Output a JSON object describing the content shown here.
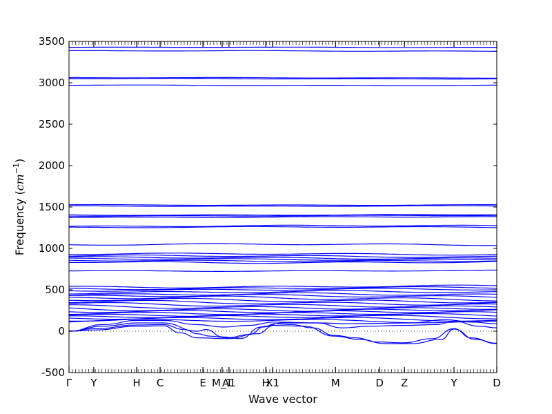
{
  "chart_data": {
    "type": "line",
    "title": "",
    "xlabel": "Wave vector",
    "ylabel_text": "Frequency (",
    "ylabel_math": "cm",
    "ylabel_exp": "−1",
    "ylabel_close": ")",
    "ylim": [
      -500,
      3500
    ],
    "yticks": [
      -500,
      0,
      500,
      1000,
      1500,
      2000,
      2500,
      3000,
      3500
    ],
    "xlim": [
      0,
      1
    ],
    "xticks": [
      {
        "label": "Γ",
        "x": 0.0
      },
      {
        "label": "Y",
        "x": 0.058
      },
      {
        "label": "H",
        "x": 0.158
      },
      {
        "label": "C",
        "x": 0.213
      },
      {
        "label": "E",
        "x": 0.313
      },
      {
        "label": "M_1",
        "x": 0.358
      },
      {
        "label": "A1",
        "x": 0.374
      },
      {
        "label": "H",
        "x": 0.46
      },
      {
        "label": "X1",
        "x": 0.476
      },
      {
        "label": "M",
        "x": 0.623
      },
      {
        "label": "D",
        "x": 0.726
      },
      {
        "label": "Z",
        "x": 0.784
      },
      {
        "label": "Y",
        "x": 0.9
      },
      {
        "label": "D",
        "x": 1.0
      }
    ],
    "zero_line": true,
    "series_color": "#0000ff",
    "flat_bands": [
      {
        "y": 3428,
        "amp": 3
      },
      {
        "y": 3384,
        "amp": 6
      },
      {
        "y": 3060,
        "amp": 4
      },
      {
        "y": 3050,
        "amp": 5
      },
      {
        "y": 2970,
        "amp": 5
      },
      {
        "y": 1525,
        "amp": 6
      },
      {
        "y": 1512,
        "amp": 5
      },
      {
        "y": 1405,
        "amp": 7
      },
      {
        "y": 1395,
        "amp": 7
      },
      {
        "y": 1378,
        "amp": 7
      },
      {
        "y": 1270,
        "amp": 12
      },
      {
        "y": 1255,
        "amp": 10
      },
      {
        "y": 1045,
        "amp": 14
      },
      {
        "y": 930,
        "amp": 14
      },
      {
        "y": 905,
        "amp": 16
      },
      {
        "y": 885,
        "amp": 16
      },
      {
        "y": 870,
        "amp": 14
      },
      {
        "y": 852,
        "amp": 14
      },
      {
        "y": 835,
        "amp": 16
      },
      {
        "y": 730,
        "amp": 8
      },
      {
        "y": 540,
        "amp": 18
      },
      {
        "y": 520,
        "amp": 18
      },
      {
        "y": 500,
        "amp": 18
      },
      {
        "y": 470,
        "amp": 22
      },
      {
        "y": 440,
        "amp": 25
      },
      {
        "y": 420,
        "amp": 25
      },
      {
        "y": 395,
        "amp": 30
      },
      {
        "y": 370,
        "amp": 28
      },
      {
        "y": 345,
        "amp": 30
      },
      {
        "y": 320,
        "amp": 30
      },
      {
        "y": 295,
        "amp": 30
      },
      {
        "y": 270,
        "amp": 32
      },
      {
        "y": 250,
        "amp": 30
      },
      {
        "y": 228,
        "amp": 32
      },
      {
        "y": 205,
        "amp": 32
      },
      {
        "y": 185,
        "amp": 30
      },
      {
        "y": 165,
        "amp": 30
      },
      {
        "y": 140,
        "amp": 30
      },
      {
        "y": 120,
        "amp": 28
      }
    ],
    "low_bands": [
      [
        [
          0.0,
          0
        ],
        [
          0.06,
          30
        ],
        [
          0.16,
          75
        ],
        [
          0.22,
          80
        ],
        [
          0.27,
          20
        ],
        [
          0.3,
          -30
        ],
        [
          0.33,
          -60
        ],
        [
          0.37,
          -80
        ],
        [
          0.42,
          -40
        ],
        [
          0.46,
          60
        ],
        [
          0.48,
          90
        ],
        [
          0.52,
          80
        ],
        [
          0.57,
          40
        ],
        [
          0.62,
          -50
        ],
        [
          0.67,
          -80
        ],
        [
          0.72,
          -130
        ],
        [
          0.78,
          -140
        ],
        [
          0.85,
          -90
        ],
        [
          0.9,
          30
        ],
        [
          0.94,
          -80
        ],
        [
          1.0,
          -150
        ]
      ],
      [
        [
          0.0,
          0
        ],
        [
          0.06,
          15
        ],
        [
          0.16,
          60
        ],
        [
          0.22,
          65
        ],
        [
          0.26,
          -20
        ],
        [
          0.3,
          -80
        ],
        [
          0.37,
          -90
        ],
        [
          0.44,
          -30
        ],
        [
          0.48,
          70
        ],
        [
          0.55,
          60
        ],
        [
          0.62,
          -60
        ],
        [
          0.68,
          -100
        ],
        [
          0.74,
          -150
        ],
        [
          0.8,
          -150
        ],
        [
          0.87,
          -100
        ],
        [
          0.9,
          25
        ],
        [
          0.95,
          -100
        ],
        [
          1.0,
          -145
        ]
      ],
      [
        [
          0.0,
          0
        ],
        [
          0.08,
          60
        ],
        [
          0.16,
          100
        ],
        [
          0.22,
          100
        ],
        [
          0.3,
          0
        ],
        [
          0.32,
          20
        ],
        [
          0.36,
          -70
        ],
        [
          0.4,
          -90
        ],
        [
          0.45,
          50
        ],
        [
          0.5,
          100
        ],
        [
          0.58,
          100
        ],
        [
          0.64,
          40
        ],
        [
          0.7,
          60
        ],
        [
          0.78,
          70
        ],
        [
          0.86,
          80
        ],
        [
          0.9,
          120
        ],
        [
          0.96,
          60
        ],
        [
          1.0,
          40
        ]
      ],
      [
        [
          0.0,
          0
        ],
        [
          0.08,
          80
        ],
        [
          0.16,
          130
        ],
        [
          0.22,
          130
        ],
        [
          0.3,
          80
        ],
        [
          0.36,
          50
        ],
        [
          0.42,
          70
        ],
        [
          0.48,
          110
        ],
        [
          0.58,
          100
        ],
        [
          0.66,
          90
        ],
        [
          0.72,
          95
        ],
        [
          0.8,
          100
        ],
        [
          0.88,
          140
        ],
        [
          0.94,
          110
        ],
        [
          1.0,
          90
        ]
      ]
    ]
  }
}
